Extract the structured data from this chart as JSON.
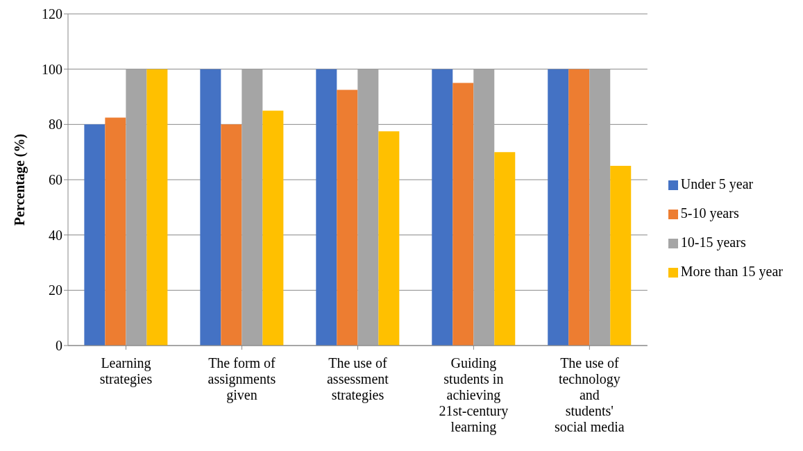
{
  "chart_data": {
    "type": "bar",
    "ylabel": "Percentage (%)",
    "categories": [
      "Learning strategies",
      "The form of assignments given",
      "The use of assessment strategies",
      "Guiding students in achieving 21st-century learning",
      "The use of technology and students' social media"
    ],
    "series": [
      {
        "name": "Under 5 year",
        "color": "#4472c4",
        "values": [
          80,
          100,
          100,
          100,
          100
        ]
      },
      {
        "name": "5-10 years",
        "color": "#ed7d31",
        "values": [
          82.5,
          80,
          92.5,
          95,
          100
        ]
      },
      {
        "name": "10-15 years",
        "color": "#a5a5a5",
        "values": [
          100,
          100,
          100,
          100,
          100
        ]
      },
      {
        "name": "More than 15 year",
        "color": "#ffc000",
        "values": [
          100,
          85,
          77.5,
          70,
          65
        ]
      }
    ],
    "ylim": [
      0,
      120
    ],
    "yticks": [
      0,
      20,
      40,
      60,
      80,
      100,
      120
    ],
    "grid": "y",
    "legend": "right"
  }
}
